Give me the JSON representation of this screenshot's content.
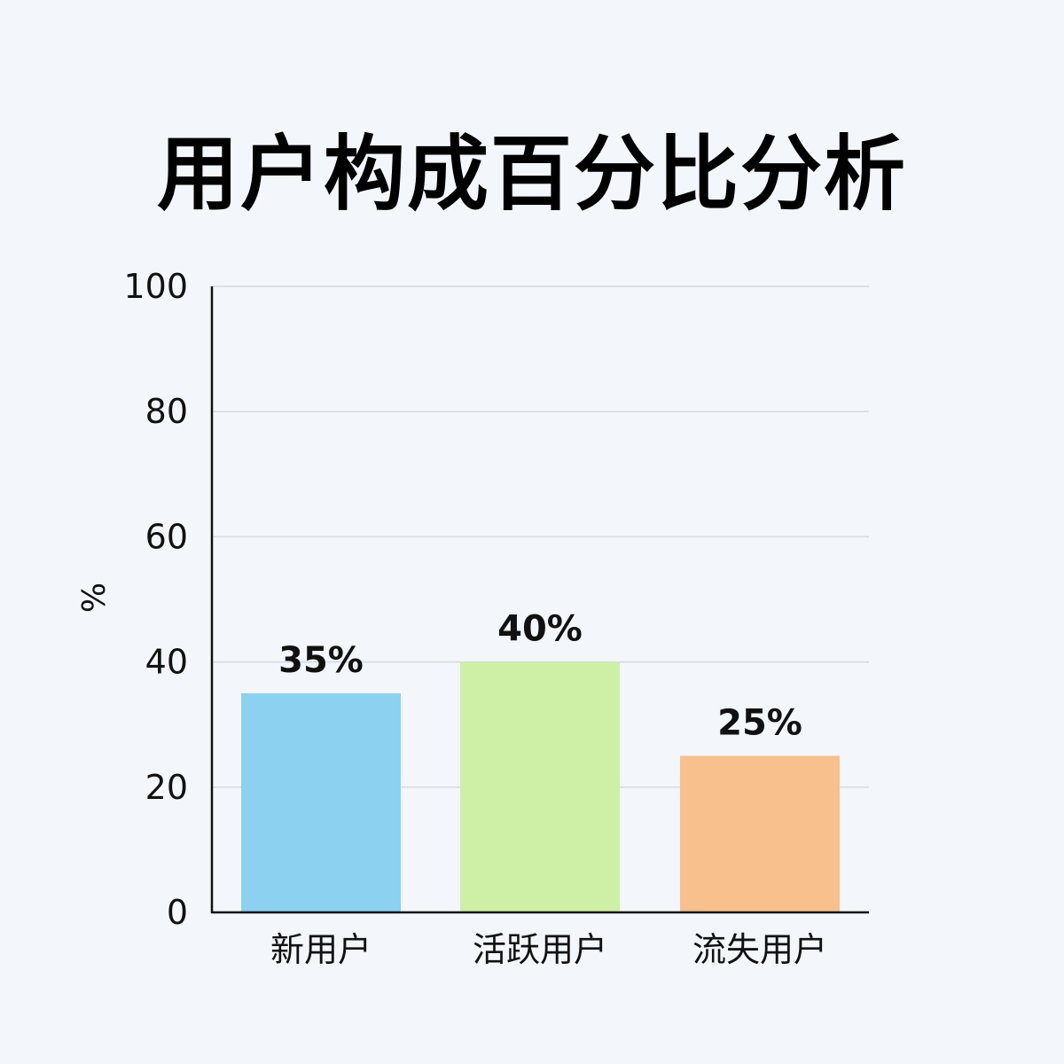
{
  "chart_data": {
    "type": "bar",
    "title": "用户构成百分比分析",
    "ylabel": "%",
    "xlabel": "",
    "categories": [
      "新用户",
      "活跃用户",
      "流失用户"
    ],
    "values": [
      35,
      40,
      25
    ],
    "data_labels": [
      "35%",
      "40%",
      "25%"
    ],
    "colors": [
      "#8dd1f0",
      "#cdf0a6",
      "#f7c08c"
    ],
    "ylim": [
      0,
      100
    ],
    "yticks": [
      0,
      20,
      40,
      60,
      80,
      100
    ],
    "grid": true,
    "legend": "none"
  }
}
